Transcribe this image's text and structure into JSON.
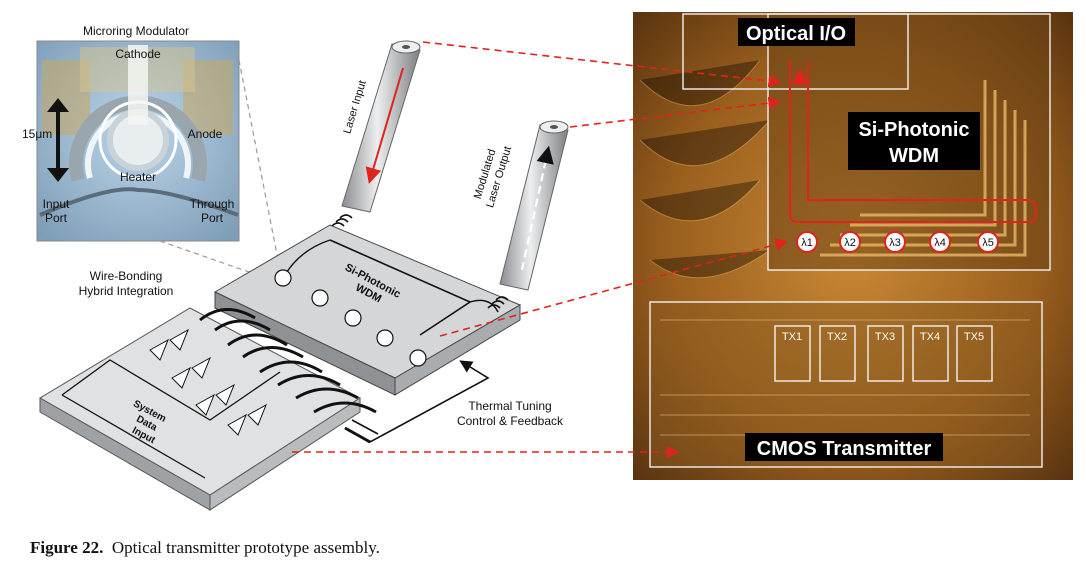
{
  "inset": {
    "title": "Microring Modulator",
    "cathode": "Cathode",
    "anode": "Anode",
    "scale": "15μm",
    "heater": "Heater",
    "input_port": [
      "Input",
      "Port"
    ],
    "through_port": [
      "Through",
      "Port"
    ]
  },
  "assembly": {
    "laser_input": "Laser Input",
    "modulated_output": [
      "Modulated",
      "Laser Output"
    ],
    "wire_bonding": [
      "Wire-Bonding",
      "Hybrid Integration"
    ],
    "photonic_chip": [
      "Si-Photonic",
      "WDM"
    ],
    "system_data": [
      "System",
      "Data",
      "Input"
    ],
    "thermal": [
      "Thermal Tuning",
      "Control & Feedback"
    ]
  },
  "die_photo": {
    "optical_io": "Optical I/O",
    "wdm": [
      "Si-Photonic",
      "WDM"
    ],
    "wavelengths": [
      "λ1",
      "λ2",
      "λ3",
      "λ4",
      "λ5"
    ],
    "tx_blocks": [
      "TX1",
      "TX2",
      "TX3",
      "TX4",
      "TX5"
    ],
    "cmos": "CMOS Transmitter"
  },
  "caption": {
    "label": "Figure 22.",
    "text": "Optical transmitter prototype assembly."
  },
  "colors": {
    "accent_red": "#e0231c",
    "die_gold": "#b8782a",
    "chip_gray": "#d4d6d8"
  }
}
